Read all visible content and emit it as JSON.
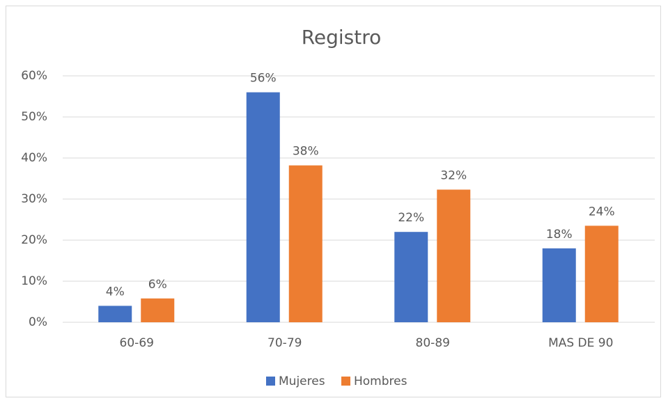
{
  "chart_data": {
    "type": "bar",
    "title": "Registro",
    "categories": [
      "60-69",
      "70-79",
      "80-89",
      "MAS DE 90"
    ],
    "series": [
      {
        "name": "Mujeres",
        "color": "#4472c4",
        "values": [
          4,
          56,
          22,
          18
        ],
        "value_labels": [
          "4%",
          "56%",
          "22%",
          "18%"
        ]
      },
      {
        "name": "Hombres",
        "color": "#ed7d31",
        "values": [
          5.8,
          38.2,
          32.3,
          23.5
        ],
        "value_labels": [
          "6%",
          "38%",
          "32%",
          "24%"
        ]
      }
    ],
    "ylim": [
      0,
      60
    ],
    "yticks": [
      {
        "value": 0,
        "label": "0%"
      },
      {
        "value": 10,
        "label": "10%"
      },
      {
        "value": 20,
        "label": "20%"
      },
      {
        "value": 30,
        "label": "30%"
      },
      {
        "value": 40,
        "label": "40%"
      },
      {
        "value": 50,
        "label": "50%"
      },
      {
        "value": 60,
        "label": "60%"
      }
    ],
    "grid": true,
    "legend": "bottom"
  }
}
